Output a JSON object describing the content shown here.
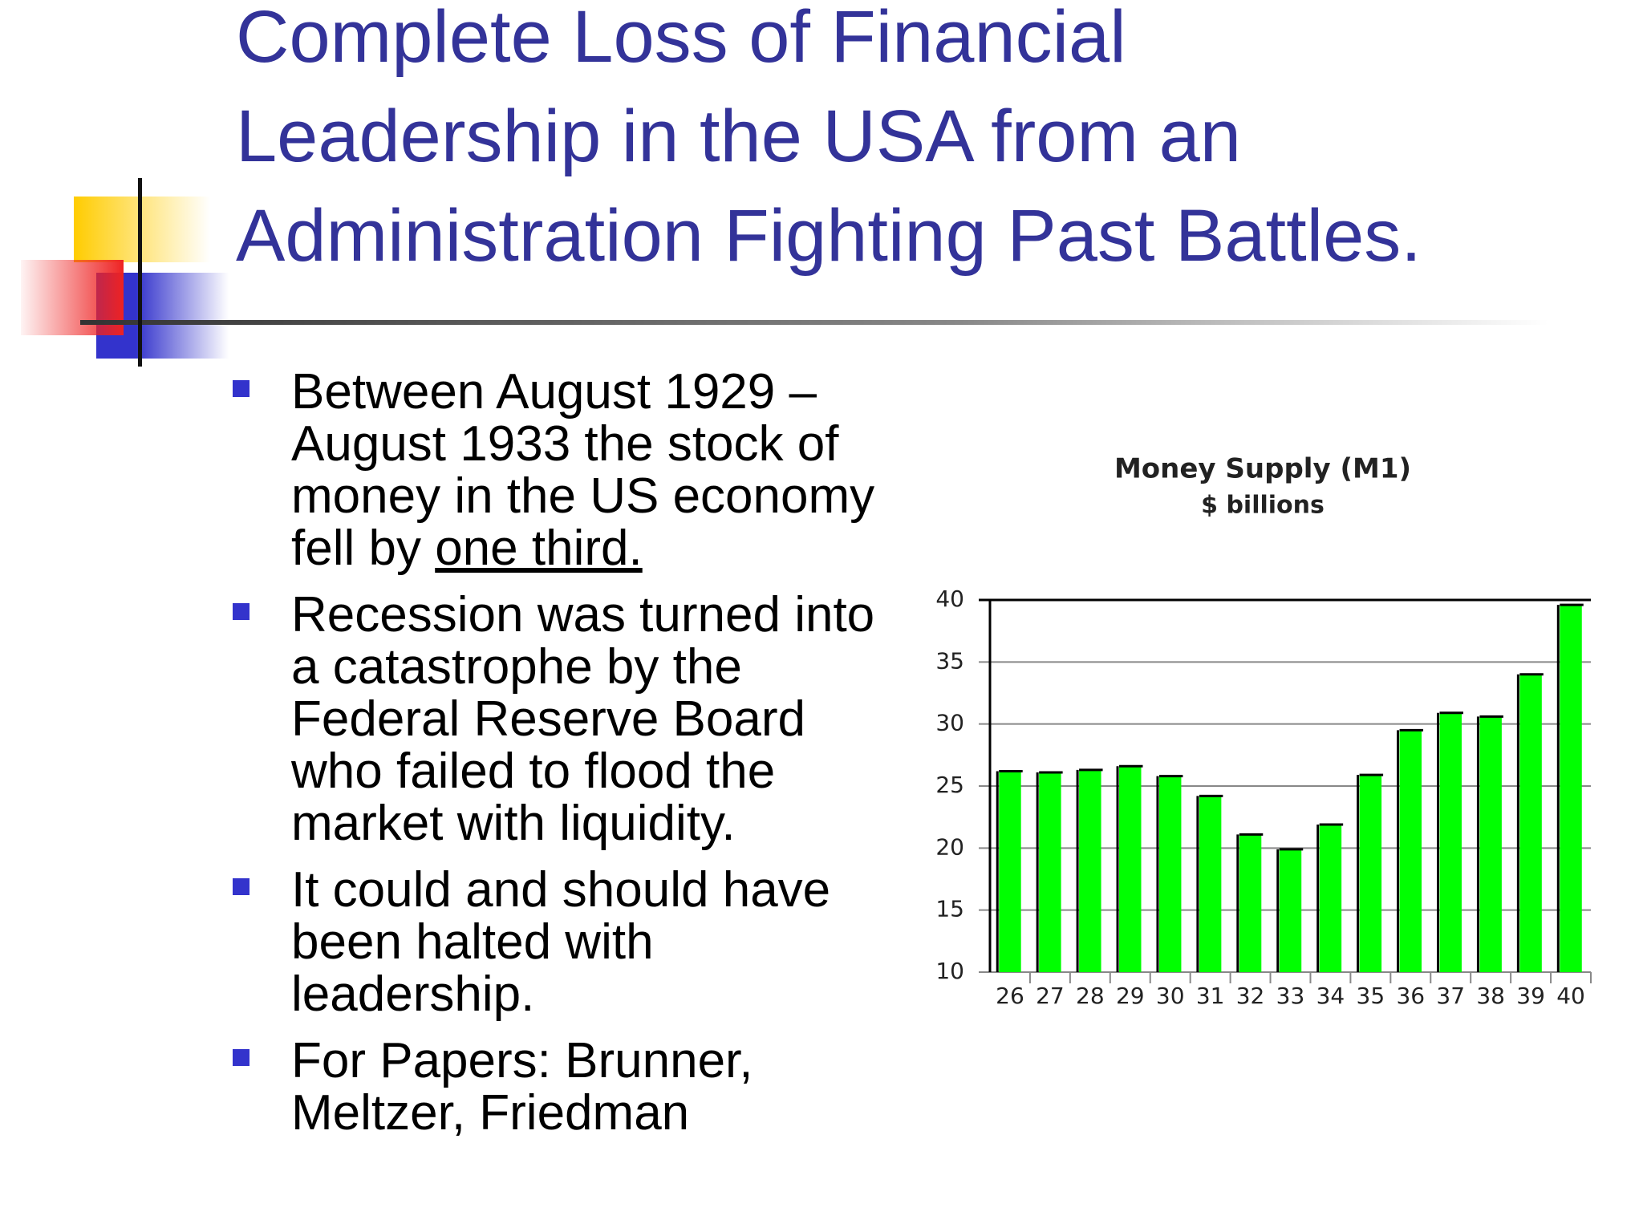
{
  "slide": {
    "title_lines": [
      "Complete Loss of Financial",
      "Leadership in the USA from an",
      "Administration Fighting Past Battles."
    ],
    "bullets": [
      {
        "text": "Between August 1929 – August 1933 the stock of money in the US economy fell by ",
        "underlined": "one third."
      },
      {
        "text": "Recession was turned into a catastrophe by the Federal Reserve Board who failed to flood the market with liquidity."
      },
      {
        "text": "It could and should have been halted with leadership."
      },
      {
        "text": "For Papers: Brunner, Meltzer, Friedman"
      }
    ]
  },
  "chart_data": {
    "type": "bar",
    "title": "Money Supply (M1)",
    "subtitle": "$ billions",
    "categories": [
      "26",
      "27",
      "28",
      "29",
      "30",
      "31",
      "32",
      "33",
      "34",
      "35",
      "36",
      "37",
      "38",
      "39",
      "40"
    ],
    "values": [
      26.2,
      26.1,
      26.3,
      26.6,
      25.8,
      24.2,
      21.1,
      19.9,
      21.9,
      25.9,
      29.5,
      30.9,
      30.6,
      34.0,
      39.6
    ],
    "color": "#00ff00",
    "ylim": [
      10,
      40
    ],
    "yticks": [
      10,
      15,
      20,
      25,
      30,
      35,
      40
    ],
    "grid": true
  }
}
